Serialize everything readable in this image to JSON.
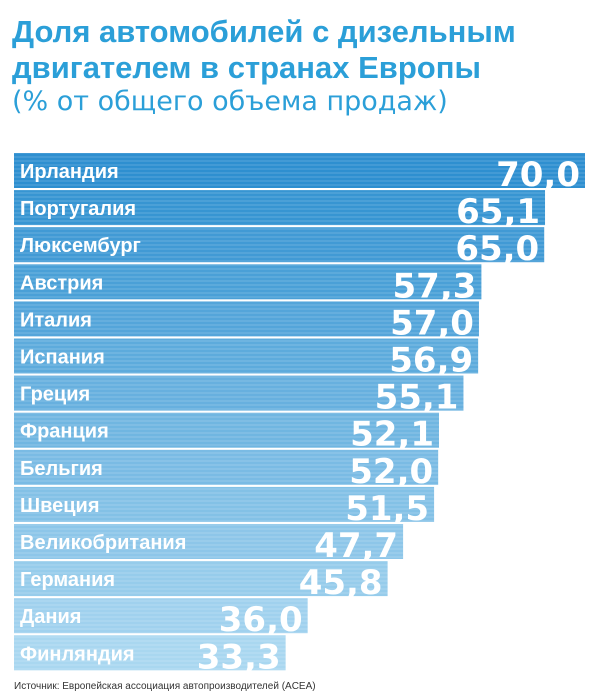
{
  "title": "Доля автомобилей с дизельным двигателем в странах Европы",
  "subtitle": "(% от общего объема продаж)",
  "source": "Источник: Европейская ассоциация автопроизводителей (ACEA)",
  "colors": {
    "title": "#2b9fd8",
    "bar_top": "#2e8fd0",
    "bar_bottom": "#a9d7f0",
    "text": "#ffffff",
    "source": "#333333"
  },
  "chart_data": {
    "type": "bar",
    "orientation": "horizontal",
    "title": "Доля автомобилей с дизельным двигателем в странах Европы",
    "subtitle": "(% от общего объема продаж)",
    "categories": [
      "Ирландия",
      "Португалия",
      "Люксембург",
      "Австрия",
      "Италия",
      "Испания",
      "Греция",
      "Франция",
      "Бельгия",
      "Швеция",
      "Великобритания",
      "Германия",
      "Дания",
      "Финляндия"
    ],
    "values": [
      70.0,
      65.1,
      65.0,
      57.3,
      57.0,
      56.9,
      55.1,
      52.1,
      52.0,
      51.5,
      47.7,
      45.8,
      36.0,
      33.3
    ],
    "value_labels": [
      "70,0",
      "65,1",
      "65,0",
      "57,3",
      "57,0",
      "56,9",
      "55,1",
      "52,1",
      "52,0",
      "51,5",
      "47,7",
      "45,8",
      "36,0",
      "33,3"
    ],
    "xlim": [
      0,
      70
    ],
    "grid": false,
    "legend": "none"
  }
}
